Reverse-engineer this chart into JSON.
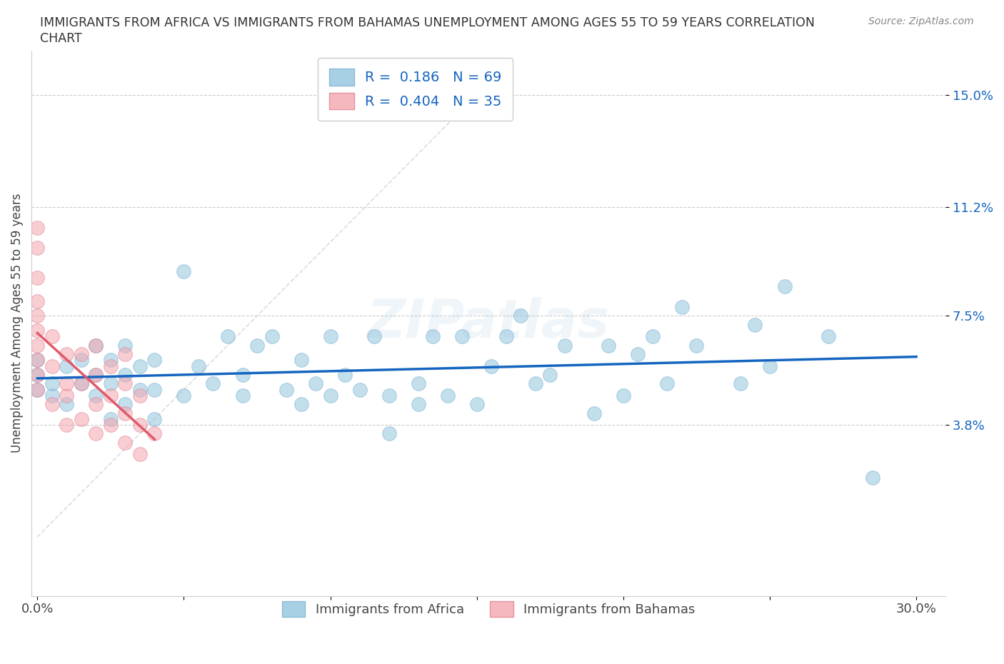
{
  "title_line1": "IMMIGRANTS FROM AFRICA VS IMMIGRANTS FROM BAHAMAS UNEMPLOYMENT AMONG AGES 55 TO 59 YEARS CORRELATION",
  "title_line2": "CHART",
  "source_text": "Source: ZipAtlas.com",
  "ylabel": "Unemployment Among Ages 55 to 59 years",
  "xlim": [
    -0.002,
    0.31
  ],
  "ylim": [
    -0.02,
    0.165
  ],
  "xtick_positions": [
    0.0,
    0.05,
    0.1,
    0.15,
    0.2,
    0.25,
    0.3
  ],
  "xticklabels": [
    "0.0%",
    "",
    "",
    "",
    "",
    "",
    "30.0%"
  ],
  "ytick_positions": [
    0.038,
    0.075,
    0.112,
    0.15
  ],
  "ytick_labels": [
    "3.8%",
    "7.5%",
    "11.2%",
    "15.0%"
  ],
  "africa_color": "#92c5de",
  "bahamas_color": "#f4a6b0",
  "africa_R": 0.186,
  "africa_N": 69,
  "bahamas_R": 0.404,
  "bahamas_N": 35,
  "africa_x": [
    0.0,
    0.0,
    0.0,
    0.005,
    0.005,
    0.01,
    0.01,
    0.015,
    0.015,
    0.02,
    0.02,
    0.02,
    0.025,
    0.025,
    0.025,
    0.03,
    0.03,
    0.03,
    0.035,
    0.035,
    0.04,
    0.04,
    0.04,
    0.05,
    0.05,
    0.055,
    0.06,
    0.065,
    0.07,
    0.07,
    0.075,
    0.08,
    0.085,
    0.09,
    0.09,
    0.095,
    0.1,
    0.1,
    0.105,
    0.11,
    0.115,
    0.12,
    0.12,
    0.13,
    0.13,
    0.135,
    0.14,
    0.145,
    0.15,
    0.155,
    0.16,
    0.165,
    0.17,
    0.175,
    0.18,
    0.19,
    0.195,
    0.2,
    0.205,
    0.21,
    0.215,
    0.22,
    0.225,
    0.24,
    0.245,
    0.25,
    0.255,
    0.27,
    0.285
  ],
  "africa_y": [
    0.05,
    0.055,
    0.06,
    0.048,
    0.052,
    0.045,
    0.058,
    0.052,
    0.06,
    0.048,
    0.055,
    0.065,
    0.04,
    0.052,
    0.06,
    0.045,
    0.055,
    0.065,
    0.05,
    0.058,
    0.04,
    0.05,
    0.06,
    0.048,
    0.09,
    0.058,
    0.052,
    0.068,
    0.048,
    0.055,
    0.065,
    0.068,
    0.05,
    0.045,
    0.06,
    0.052,
    0.048,
    0.068,
    0.055,
    0.05,
    0.068,
    0.035,
    0.048,
    0.045,
    0.052,
    0.068,
    0.048,
    0.068,
    0.045,
    0.058,
    0.068,
    0.075,
    0.052,
    0.055,
    0.065,
    0.042,
    0.065,
    0.048,
    0.062,
    0.068,
    0.052,
    0.078,
    0.065,
    0.052,
    0.072,
    0.058,
    0.085,
    0.068,
    0.02
  ],
  "bahamas_x": [
    0.0,
    0.0,
    0.0,
    0.0,
    0.0,
    0.0,
    0.0,
    0.0,
    0.0,
    0.0,
    0.005,
    0.005,
    0.005,
    0.01,
    0.01,
    0.01,
    0.01,
    0.015,
    0.015,
    0.015,
    0.02,
    0.02,
    0.02,
    0.02,
    0.025,
    0.025,
    0.025,
    0.03,
    0.03,
    0.03,
    0.03,
    0.035,
    0.035,
    0.035,
    0.04
  ],
  "bahamas_y": [
    0.05,
    0.055,
    0.06,
    0.065,
    0.07,
    0.075,
    0.08,
    0.088,
    0.098,
    0.105,
    0.045,
    0.058,
    0.068,
    0.038,
    0.048,
    0.052,
    0.062,
    0.04,
    0.052,
    0.062,
    0.035,
    0.045,
    0.055,
    0.065,
    0.038,
    0.048,
    0.058,
    0.032,
    0.042,
    0.052,
    0.062,
    0.028,
    0.038,
    0.048,
    0.035
  ],
  "background_color": "#ffffff",
  "grid_color": "#cccccc",
  "africa_line_color": "#1565c0",
  "bahamas_line_color": "#e05a6a",
  "watermark": "ZIPatlas"
}
